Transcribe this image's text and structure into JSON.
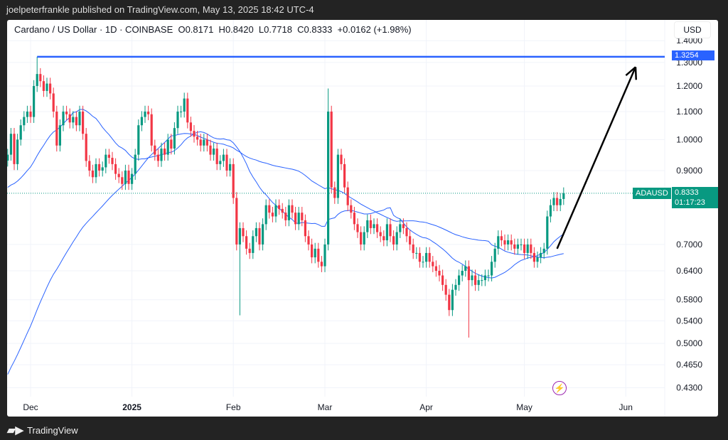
{
  "header": {
    "published": "joelpeterfrankle published on TradingView.com, May 13, 2025 18:42 UTC-4"
  },
  "legend": "Cardano / US Dollar · 1D · COINBASE  O0.8171  H0.8420  L0.7718  C0.8333  +0.0162 (+1.98%)",
  "currency": "USD",
  "brand": "TradingView",
  "labels": {
    "line_price": "1.3254",
    "symbol": "ADAUSD",
    "last_price": "0.8333",
    "countdown": "01:17:23"
  },
  "colors": {
    "up": "#089981",
    "down": "#f23645",
    "ma": "#2962ff",
    "hline": "#2962ff",
    "label": "#089981"
  },
  "chart_data": {
    "type": "candlestick",
    "start_date": "2024-11-24",
    "price_ticks": [
      1.4,
      1.3,
      1.2,
      1.1,
      1.0,
      0.9,
      0.7,
      0.64,
      0.58,
      0.54,
      0.5,
      0.465,
      0.43
    ],
    "price_tick_labels": [
      "1.4000",
      "1.3000",
      "1.2000",
      "1.1000",
      "1.0000",
      "0.9000",
      "0.7000",
      "0.6400",
      "0.5800",
      "0.5400",
      "0.5000",
      "0.4650",
      "0.4300"
    ],
    "x_ticks": [
      {
        "label": "Dec",
        "day": 7
      },
      {
        "label": "2025",
        "day": 38
      },
      {
        "label": "Feb",
        "day": 69
      },
      {
        "label": "Mar",
        "day": 97
      },
      {
        "label": "Apr",
        "day": 128
      },
      {
        "label": "May",
        "day": 158
      },
      {
        "label": "Jun",
        "day": 189
      }
    ],
    "closes": [
      0.95,
      1.02,
      0.92,
      1.0,
      1.05,
      1.08,
      1.1,
      1.08,
      1.2,
      1.25,
      1.22,
      1.18,
      1.21,
      1.17,
      1.1,
      0.98,
      1.05,
      1.1,
      1.09,
      1.06,
      1.08,
      1.05,
      1.1,
      1.02,
      0.93,
      0.9,
      0.88,
      0.92,
      0.9,
      0.91,
      0.95,
      0.94,
      0.92,
      0.89,
      0.88,
      0.86,
      0.9,
      0.86,
      0.89,
      0.95,
      1.05,
      1.08,
      1.1,
      1.09,
      0.98,
      0.95,
      0.93,
      0.97,
      0.95,
      1.0,
      0.97,
      1.04,
      1.1,
      1.1,
      1.15,
      1.06,
      1.03,
      1.01,
      1.0,
      0.98,
      1.0,
      0.98,
      0.95,
      0.97,
      0.92,
      0.93,
      0.95,
      0.9,
      0.92,
      0.82,
      0.7,
      0.74,
      0.72,
      0.69,
      0.68,
      0.72,
      0.74,
      0.7,
      0.75,
      0.8,
      0.78,
      0.77,
      0.8,
      0.79,
      0.78,
      0.76,
      0.8,
      0.78,
      0.75,
      0.78,
      0.76,
      0.72,
      0.7,
      0.67,
      0.69,
      0.66,
      0.65,
      0.7,
      1.1,
      0.85,
      0.82,
      0.95,
      0.92,
      0.85,
      0.8,
      0.78,
      0.75,
      0.73,
      0.7,
      0.73,
      0.76,
      0.74,
      0.75,
      0.73,
      0.72,
      0.71,
      0.75,
      0.72,
      0.7,
      0.73,
      0.75,
      0.74,
      0.72,
      0.7,
      0.68,
      0.68,
      0.66,
      0.66,
      0.68,
      0.66,
      0.65,
      0.64,
      0.63,
      0.61,
      0.59,
      0.56,
      0.6,
      0.61,
      0.63,
      0.64,
      0.65,
      0.62,
      0.63,
      0.61,
      0.62,
      0.62,
      0.63,
      0.63,
      0.66,
      0.69,
      0.72,
      0.71,
      0.7,
      0.71,
      0.7,
      0.69,
      0.7,
      0.7,
      0.68,
      0.7,
      0.68,
      0.66,
      0.67,
      0.68,
      0.69,
      0.77,
      0.8,
      0.82,
      0.8,
      0.8171,
      0.8333
    ],
    "wick_overrides": [
      {
        "day": 9,
        "high": 1.3254
      },
      {
        "day": 71,
        "low": 0.55
      },
      {
        "day": 98,
        "high": 1.19
      },
      {
        "day": 141,
        "low": 0.51
      }
    ],
    "horizontal_line": 1.3254,
    "arrow": {
      "from": {
        "day": 168,
        "price": 0.69
      },
      "to": {
        "day": 192,
        "price": 1.28
      }
    }
  }
}
